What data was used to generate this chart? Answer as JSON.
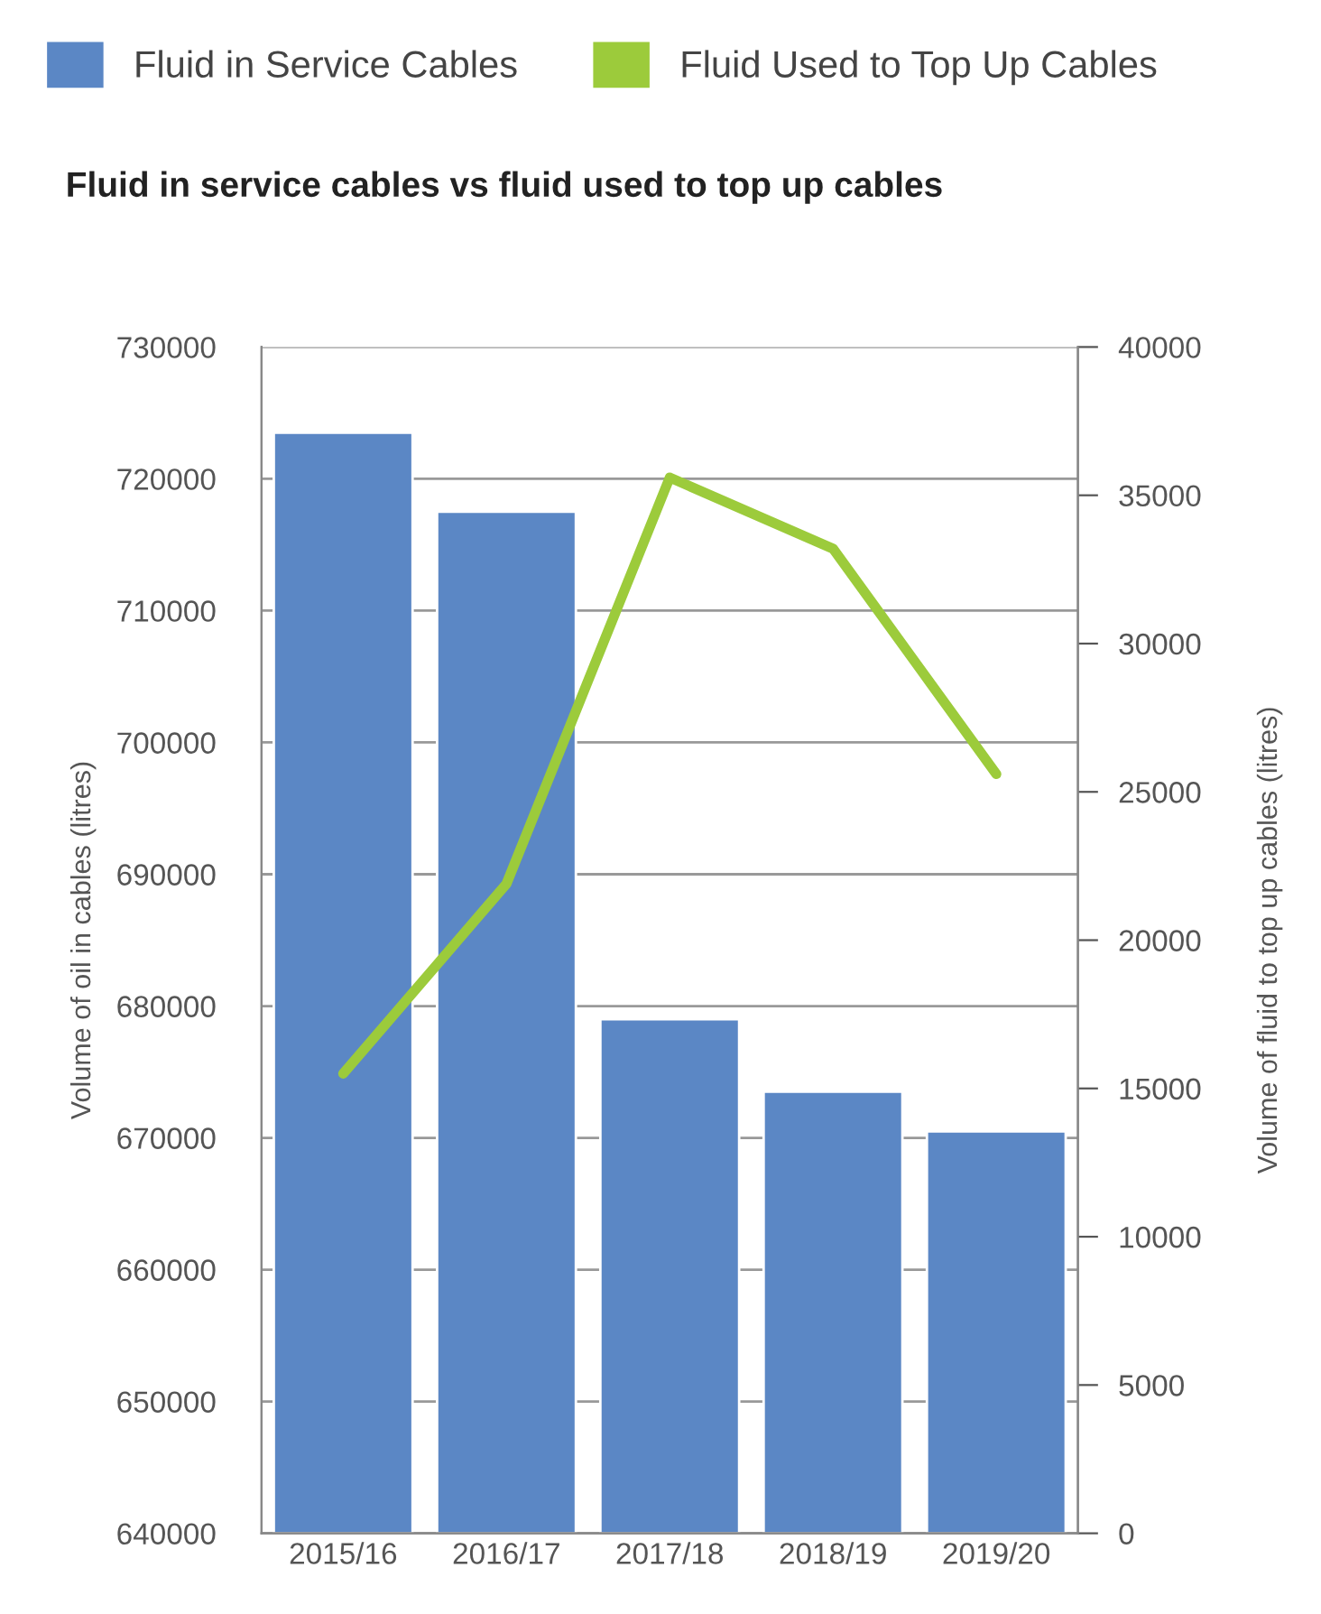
{
  "chart_data": {
    "type": "bar",
    "title": "Fluid in service cables vs fluid used to top up cables",
    "ylabel": "Volume of oil in cables (litres)",
    "y2label": "Volume of fluid to top up cables (litres)",
    "categories": [
      "2015/16",
      "2016/17",
      "2017/18",
      "2018/19",
      "2019/20"
    ],
    "series": [
      {
        "name": "Fluid in Service Cables",
        "color": "#5b87c5",
        "values": [
          723500,
          717500,
          679000,
          673500,
          670500
        ]
      },
      {
        "name": "Fluid Used to Top Up Cables",
        "type": "line",
        "axis": "y2",
        "color": "#9ccb3b",
        "values": [
          15500,
          21900,
          35600,
          33200,
          25600
        ]
      }
    ],
    "ylim": [
      640000,
      730000
    ],
    "yticks": [
      640000,
      650000,
      660000,
      670000,
      680000,
      690000,
      700000,
      710000,
      720000,
      730000
    ],
    "y2lim": [
      0,
      40000
    ],
    "y2ticks": [
      0,
      5000,
      10000,
      15000,
      20000,
      25000,
      30000,
      35000,
      40000
    ],
    "grid": "y",
    "legend": "top left",
    "marker": "none",
    "line_style": "solid"
  }
}
